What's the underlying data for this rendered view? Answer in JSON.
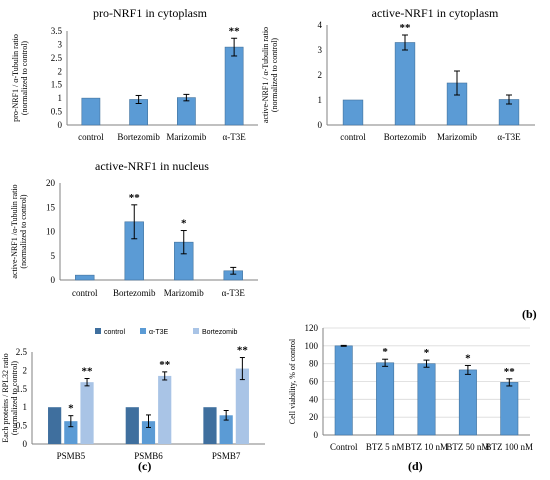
{
  "panel_labels": [
    "(b)",
    "(c)",
    "(d)"
  ],
  "chart_data": [
    {
      "type": "bar",
      "title": "pro-NRF1 in cytoplasm",
      "ylabel_lines": [
        "pro-NRF1 / α-Tubulin ratio",
        "(normalized to control)"
      ],
      "categories": [
        "control",
        "Bortezomib",
        "Marizomib",
        "α-T3E"
      ],
      "values": [
        1.0,
        0.95,
        1.02,
        2.9
      ],
      "errors": [
        0.0,
        0.15,
        0.12,
        0.33
      ],
      "significance": [
        "",
        "",
        "",
        "**"
      ],
      "ylim": [
        0,
        3.5
      ],
      "yticks": [
        "0",
        "0.5",
        "1",
        "1.5",
        "2",
        "2.5",
        "3",
        "3.5"
      ],
      "grid": false,
      "color": "#5b9bd5"
    },
    {
      "type": "bar",
      "title": "active-NRF1 in cytoplasm",
      "ylabel_lines": [
        "active-NRF1 / α-Tubulin ratio",
        "(normalized to control)"
      ],
      "categories": [
        "control",
        "Bortezomib",
        "Marizomib",
        "α-T3E"
      ],
      "values": [
        1.0,
        3.3,
        1.68,
        1.02
      ],
      "errors": [
        0.0,
        0.3,
        0.48,
        0.18
      ],
      "significance": [
        "",
        "**",
        "",
        ""
      ],
      "ylim": [
        0,
        4
      ],
      "yticks": [
        "0",
        "1",
        "2",
        "3",
        "4"
      ],
      "grid": false,
      "color": "#5b9bd5"
    },
    {
      "type": "bar",
      "title": "active-NRF1 in nucleus",
      "ylabel_lines": [
        "active-NRF1 /α-Tubulin ratio",
        "(normalized to control)"
      ],
      "categories": [
        "control",
        "Bortezomib",
        "Marizomib",
        "α-T3E"
      ],
      "values": [
        1.0,
        12.0,
        7.8,
        1.9
      ],
      "errors": [
        0.0,
        3.5,
        2.4,
        0.7
      ],
      "significance": [
        "",
        "**",
        "*",
        ""
      ],
      "ylim": [
        0,
        20
      ],
      "yticks": [
        "0",
        "5",
        "10",
        "15",
        "20"
      ],
      "grid": false,
      "color": "#5b9bd5"
    },
    {
      "type": "bar",
      "title": "",
      "ylabel_lines": [
        "Each proteins / RPL32 ratio",
        "(normalized to control)"
      ],
      "categories": [
        "PSMB5",
        "PSMB6",
        "PSMB7"
      ],
      "series": [
        {
          "name": "control",
          "values": [
            1.0,
            1.0,
            1.0
          ],
          "errors": [
            0.0,
            0.0,
            0.0
          ],
          "significance": [
            "",
            "",
            ""
          ],
          "color": "#3f6f9e"
        },
        {
          "name": "α-T3E",
          "values": [
            0.62,
            0.62,
            0.78
          ],
          "errors": [
            0.15,
            0.17,
            0.13
          ],
          "significance": [
            "*",
            "",
            ""
          ],
          "color": "#5b9bd5"
        },
        {
          "name": "Bortezomib",
          "values": [
            1.68,
            1.85,
            2.05
          ],
          "errors": [
            0.1,
            0.11,
            0.3
          ],
          "significance": [
            "**",
            "**",
            "**"
          ],
          "color": "#a9c4e6"
        }
      ],
      "ylim": [
        0,
        2.5
      ],
      "yticks": [
        "0",
        "0.5",
        "1",
        "1.5",
        "2",
        "2.5"
      ],
      "legend_position": "top",
      "grid": false
    },
    {
      "type": "bar",
      "title": "",
      "ylabel_lines": [
        "Cell viability, % of control"
      ],
      "categories": [
        "Control",
        "BTZ 5 nM",
        "BTZ 10 nM",
        "BTZ 50 nM",
        "BTZ 100 nM"
      ],
      "values": [
        100,
        81,
        80,
        73,
        59
      ],
      "errors": [
        0.5,
        4,
        4,
        5,
        4
      ],
      "significance": [
        "",
        "*",
        "*",
        "*",
        "**"
      ],
      "ylim": [
        0,
        120
      ],
      "yticks": [
        "0",
        "20",
        "40",
        "60",
        "80",
        "100",
        "120"
      ],
      "grid": true,
      "color": "#5b9bd5"
    }
  ]
}
